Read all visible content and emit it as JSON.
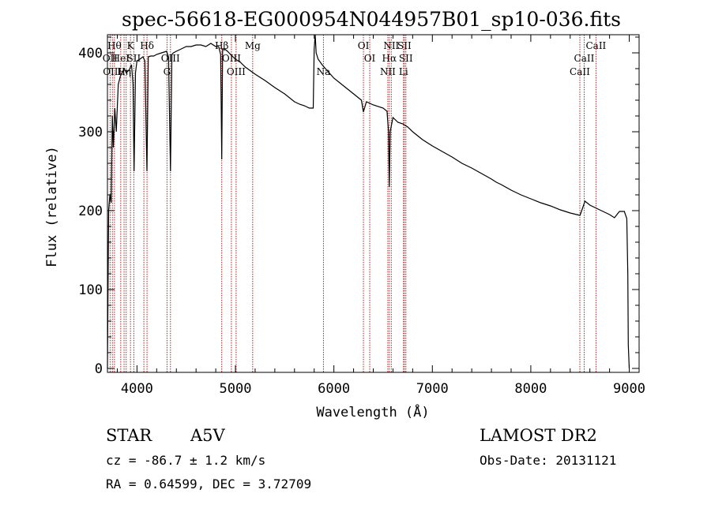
{
  "chart_data": {
    "type": "line",
    "title": "spec-56618-EG000954N044957B01_sp10-036.fits",
    "xlabel": "Wavelength (Å)",
    "ylabel": "Flux (relative)",
    "xlim": [
      3700,
      9100
    ],
    "ylim": [
      -5,
      423
    ],
    "xticks": [
      4000,
      5000,
      6000,
      7000,
      8000,
      9000
    ],
    "yticks": [
      0,
      100,
      200,
      300,
      400
    ],
    "grid": false,
    "legend": "none",
    "series": [
      {
        "color": "#000000",
        "x": [
          3700,
          3712,
          3725,
          3738,
          3750,
          3760,
          3775,
          3790,
          3810,
          3830,
          3850,
          3870,
          3890,
          3920,
          3945,
          3960,
          3970,
          3985,
          4000,
          4030,
          4060,
          4080,
          4101,
          4115,
          4140,
          4170,
          4200,
          4250,
          4300,
          4320,
          4340,
          4355,
          4370,
          4400,
          4450,
          4500,
          4550,
          4600,
          4650,
          4700,
          4750,
          4800,
          4830,
          4850,
          4861,
          4870,
          4890,
          4920,
          4950,
          5000,
          5050,
          5100,
          5200,
          5300,
          5400,
          5500,
          5600,
          5650,
          5700,
          5750,
          5790,
          5800,
          5810,
          5820,
          5840,
          5880,
          5900,
          5950,
          6000,
          6100,
          6200,
          6280,
          6300,
          6330,
          6400,
          6500,
          6540,
          6555,
          6563,
          6572,
          6600,
          6650,
          6700,
          6750,
          6800,
          6900,
          7000,
          7100,
          7200,
          7300,
          7400,
          7500,
          7600,
          7650,
          7700,
          7800,
          7900,
          8000,
          8100,
          8200,
          8300,
          8400,
          8500,
          8550,
          8600,
          8650,
          8700,
          8750,
          8800,
          8850,
          8900,
          8950,
          8975,
          8985,
          8990,
          9000
        ],
        "y": [
          0,
          200,
          220,
          210,
          320,
          280,
          330,
          300,
          360,
          370,
          375,
          380,
          375,
          378,
          385,
          360,
          250,
          375,
          390,
          392,
          395,
          390,
          250,
          395,
          396,
          396,
          398,
          400,
          402,
          395,
          250,
          398,
          400,
          402,
          405,
          408,
          408,
          410,
          410,
          408,
          412,
          408,
          408,
          398,
          265,
          405,
          405,
          402,
          398,
          392,
          388,
          382,
          373,
          365,
          356,
          348,
          338,
          335,
          333,
          330,
          330,
          405,
          423,
          400,
          392,
          385,
          382,
          375,
          368,
          358,
          348,
          340,
          325,
          338,
          334,
          330,
          326,
          300,
          230,
          300,
          318,
          312,
          310,
          306,
          300,
          290,
          282,
          275,
          268,
          260,
          254,
          247,
          240,
          236,
          233,
          226,
          220,
          215,
          210,
          206,
          201,
          197,
          194,
          212,
          207,
          204,
          201,
          198,
          195,
          191,
          199,
          199,
          190,
          120,
          30,
          0
        ]
      }
    ],
    "line_markers": [
      {
        "wavelength": 3727,
        "label": "OII",
        "row": 1
      },
      {
        "wavelength": 3750,
        "label": "OIII",
        "row": 2
      },
      {
        "wavelength": 3771,
        "label": "Hθ",
        "row": 0
      },
      {
        "wavelength": 3835,
        "label": "HeI",
        "row": 1
      },
      {
        "wavelength": 3869,
        "label": "Hη",
        "row": 2
      },
      {
        "wavelength": 3890,
        "label": "",
        "row": 0
      },
      {
        "wavelength": 3934,
        "label": "K",
        "row": 0
      },
      {
        "wavelength": 3968,
        "label": "SII",
        "row": 1
      },
      {
        "wavelength": 4070,
        "label": "",
        "row": 1
      },
      {
        "wavelength": 4102,
        "label": "Hδ",
        "row": 0
      },
      {
        "wavelength": 4305,
        "label": "G",
        "row": 2
      },
      {
        "wavelength": 4340,
        "label": "OIII",
        "row": 1
      },
      {
        "wavelength": 4861,
        "label": "Hβ",
        "row": 0
      },
      {
        "wavelength": 4959,
        "label": "OIII",
        "row": 1
      },
      {
        "wavelength": 5007,
        "label": "OIII",
        "row": 2
      },
      {
        "wavelength": 5175,
        "label": "Mg",
        "row": 0
      },
      {
        "wavelength": 5894,
        "label": "Na",
        "row": 2
      },
      {
        "wavelength": 6300,
        "label": "OI",
        "row": 0
      },
      {
        "wavelength": 6364,
        "label": "OI",
        "row": 1
      },
      {
        "wavelength": 6548,
        "label": "NII",
        "row": 2
      },
      {
        "wavelength": 6563,
        "label": "Hα",
        "row": 1
      },
      {
        "wavelength": 6583,
        "label": "NII",
        "row": 0
      },
      {
        "wavelength": 6707,
        "label": "Li",
        "row": 2
      },
      {
        "wavelength": 6716,
        "label": "SII",
        "row": 0
      },
      {
        "wavelength": 6731,
        "label": "SII",
        "row": 1
      },
      {
        "wavelength": 8498,
        "label": "CaII",
        "row": 2
      },
      {
        "wavelength": 8542,
        "label": "CaII",
        "row": 1
      },
      {
        "wavelength": 8662,
        "label": "CaII",
        "row": 0
      }
    ]
  },
  "info": {
    "object_class": "STAR",
    "subclass": "A5V",
    "survey": "LAMOST DR2",
    "redshift": "cz = -86.7 ± 1.2 km/s",
    "obs_date": "Obs-Date: 20131121",
    "coords": "RA =   0.64599, DEC =   3.72709"
  },
  "colors": {
    "spectrum": "#000000",
    "marker_line": "#b22222",
    "background": "#ffffff"
  }
}
